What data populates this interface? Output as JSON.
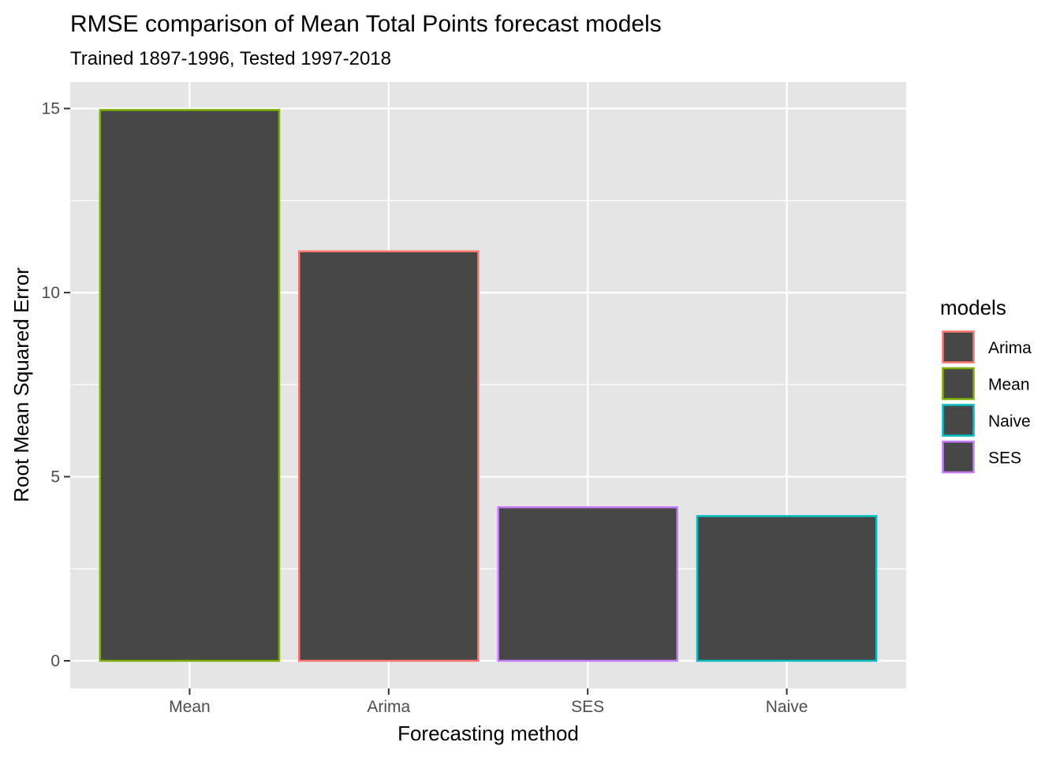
{
  "chart_data": {
    "type": "bar",
    "title": "RMSE comparison of Mean Total Points forecast models",
    "subtitle": "Trained 1897-1996, Tested 1997-2018",
    "xlabel": "Forecasting method",
    "ylabel": "Root Mean Squared Error",
    "categories": [
      "Mean",
      "Arima",
      "SES",
      "Naive"
    ],
    "values": [
      14.96,
      11.12,
      4.17,
      3.93
    ],
    "outline_colors": [
      "#7CAE00",
      "#F8766D",
      "#C77CFF",
      "#00BFC4"
    ],
    "bar_fill": "#474747",
    "panel_background": "#E5E5E5",
    "grid_color": "#FFFFFF",
    "ylim": [
      -0.75,
      15.72
    ],
    "y_ticks": [
      0,
      5,
      10,
      15
    ],
    "y_tick_labels": [
      "0",
      "5",
      "10",
      "15"
    ],
    "grid": true,
    "legend": {
      "title": "models",
      "placement": "right",
      "items": [
        {
          "label": "Arima",
          "color": "#F8766D"
        },
        {
          "label": "Mean",
          "color": "#7CAE00"
        },
        {
          "label": "Naive",
          "color": "#00BFC4"
        },
        {
          "label": "SES",
          "color": "#C77CFF"
        }
      ]
    }
  }
}
